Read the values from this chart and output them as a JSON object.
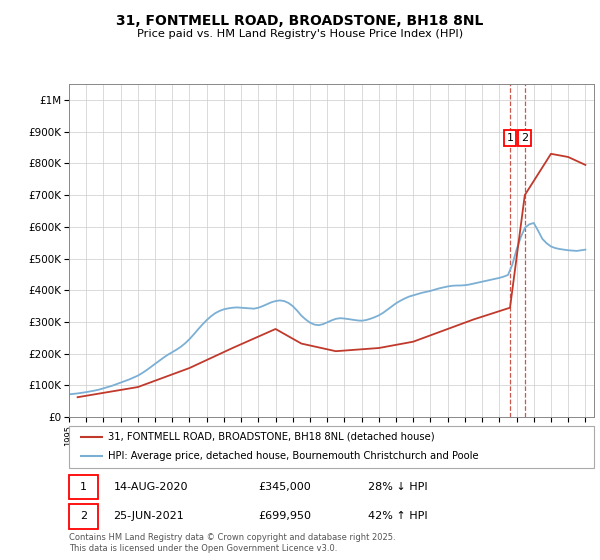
{
  "title_line1": "31, FONTMELL ROAD, BROADSTONE, BH18 8NL",
  "title_line2": "Price paid vs. HM Land Registry's House Price Index (HPI)",
  "ylim": [
    0,
    1050000
  ],
  "yticks": [
    0,
    100000,
    200000,
    300000,
    400000,
    500000,
    600000,
    700000,
    800000,
    900000,
    1000000
  ],
  "ytick_labels": [
    "£0",
    "£100K",
    "£200K",
    "£300K",
    "£400K",
    "£500K",
    "£600K",
    "£700K",
    "£800K",
    "£900K",
    "£1M"
  ],
  "hpi_color": "#7bafd4",
  "price_color": "#c0392b",
  "vline_color": "#c0392b",
  "legend_label_price": "31, FONTMELL ROAD, BROADSTONE, BH18 8NL (detached house)",
  "legend_label_hpi": "HPI: Average price, detached house, Bournemouth Christchurch and Poole",
  "sale1_year": 2020.62,
  "sale1_price": 345000,
  "sale1_label": "1",
  "sale1_date": "14-AUG-2020",
  "sale1_amount": "£345,000",
  "sale1_pct": "28% ↓ HPI",
  "sale2_year": 2021.48,
  "sale2_price": 699950,
  "sale2_label": "2",
  "sale2_date": "25-JUN-2021",
  "sale2_amount": "£699,950",
  "sale2_pct": "42% ↑ HPI",
  "footer": "Contains HM Land Registry data © Crown copyright and database right 2025.\nThis data is licensed under the Open Government Licence v3.0.",
  "hpi_years": [
    1995.0,
    1995.25,
    1995.5,
    1995.75,
    1996.0,
    1996.25,
    1996.5,
    1996.75,
    1997.0,
    1997.25,
    1997.5,
    1997.75,
    1998.0,
    1998.25,
    1998.5,
    1998.75,
    1999.0,
    1999.25,
    1999.5,
    1999.75,
    2000.0,
    2000.25,
    2000.5,
    2000.75,
    2001.0,
    2001.25,
    2001.5,
    2001.75,
    2002.0,
    2002.25,
    2002.5,
    2002.75,
    2003.0,
    2003.25,
    2003.5,
    2003.75,
    2004.0,
    2004.25,
    2004.5,
    2004.75,
    2005.0,
    2005.25,
    2005.5,
    2005.75,
    2006.0,
    2006.25,
    2006.5,
    2006.75,
    2007.0,
    2007.25,
    2007.5,
    2007.75,
    2008.0,
    2008.25,
    2008.5,
    2008.75,
    2009.0,
    2009.25,
    2009.5,
    2009.75,
    2010.0,
    2010.25,
    2010.5,
    2010.75,
    2011.0,
    2011.25,
    2011.5,
    2011.75,
    2012.0,
    2012.25,
    2012.5,
    2012.75,
    2013.0,
    2013.25,
    2013.5,
    2013.75,
    2014.0,
    2014.25,
    2014.5,
    2014.75,
    2015.0,
    2015.25,
    2015.5,
    2015.75,
    2016.0,
    2016.25,
    2016.5,
    2016.75,
    2017.0,
    2017.25,
    2017.5,
    2017.75,
    2018.0,
    2018.25,
    2018.5,
    2018.75,
    2019.0,
    2019.25,
    2019.5,
    2019.75,
    2020.0,
    2020.25,
    2020.5,
    2020.75,
    2021.0,
    2021.25,
    2021.5,
    2021.75,
    2022.0,
    2022.25,
    2022.5,
    2022.75,
    2023.0,
    2023.25,
    2023.5,
    2023.75,
    2024.0,
    2024.25,
    2024.5,
    2024.75,
    2025.0
  ],
  "hpi_values": [
    72000,
    73500,
    75000,
    77000,
    79000,
    81500,
    84000,
    87000,
    91000,
    95000,
    99000,
    104000,
    109000,
    114000,
    119000,
    125000,
    131000,
    139000,
    148000,
    158000,
    168000,
    178000,
    188000,
    197000,
    205000,
    213000,
    222000,
    233000,
    246000,
    261000,
    277000,
    292000,
    306000,
    318000,
    328000,
    335000,
    340000,
    343000,
    345000,
    346000,
    345000,
    344000,
    343000,
    342000,
    345000,
    350000,
    356000,
    362000,
    366000,
    368000,
    366000,
    360000,
    350000,
    336000,
    320000,
    308000,
    298000,
    292000,
    290000,
    293000,
    299000,
    305000,
    310000,
    312000,
    311000,
    309000,
    307000,
    305000,
    304000,
    306000,
    310000,
    315000,
    321000,
    329000,
    339000,
    349000,
    359000,
    367000,
    374000,
    380000,
    384000,
    388000,
    392000,
    395000,
    398000,
    402000,
    406000,
    409000,
    412000,
    414000,
    415000,
    415000,
    416000,
    418000,
    421000,
    424000,
    427000,
    430000,
    433000,
    436000,
    439000,
    443000,
    448000,
    480000,
    528000,
    568000,
    598000,
    608000,
    612000,
    588000,
    562000,
    548000,
    538000,
    533000,
    530000,
    528000,
    526000,
    525000,
    524000,
    526000,
    528000
  ],
  "price_years": [
    1995.5,
    1999.0,
    2002.0,
    2004.5,
    2007.0,
    2008.5,
    2010.5,
    2013.0,
    2015.0,
    2017.0,
    2018.5,
    2020.62,
    2021.48,
    2023.0,
    2024.0,
    2025.0
  ],
  "price_values": [
    63000,
    95000,
    155000,
    218000,
    278000,
    232000,
    208000,
    218000,
    238000,
    278000,
    308000,
    345000,
    699950,
    830000,
    820000,
    795000
  ]
}
